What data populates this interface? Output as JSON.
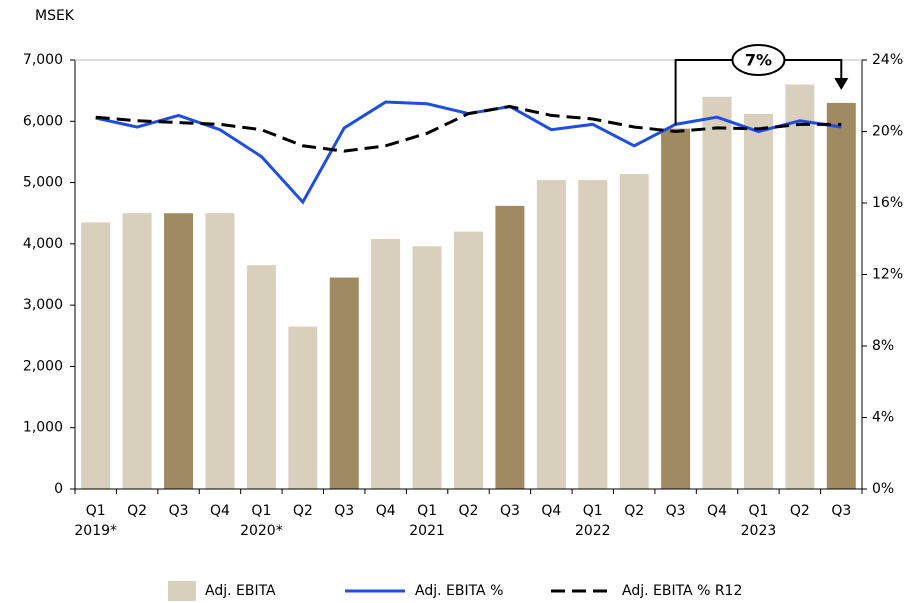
{
  "chart_data": {
    "type": "bar",
    "y_unit_label": "MSEK",
    "categories": [
      "Q1",
      "Q2",
      "Q3",
      "Q4",
      "Q1",
      "Q2",
      "Q3",
      "Q4",
      "Q1",
      "Q2",
      "Q3",
      "Q4",
      "Q1",
      "Q2",
      "Q3",
      "Q4",
      "Q1",
      "Q2",
      "Q3"
    ],
    "years": [
      "2019*",
      null,
      null,
      null,
      "2020*",
      null,
      null,
      null,
      "2021",
      null,
      null,
      null,
      "2022",
      null,
      null,
      null,
      "2023",
      null,
      null
    ],
    "series": [
      {
        "name": "Adj. EBITA",
        "color": "#d9cfbd",
        "highlight_color": "#a08a62",
        "highlight": [
          false,
          false,
          true,
          false,
          false,
          false,
          true,
          false,
          false,
          false,
          true,
          false,
          false,
          false,
          true,
          false,
          false,
          false,
          true
        ],
        "values": [
          4350,
          4500,
          4500,
          4500,
          3650,
          2650,
          3450,
          4080,
          3960,
          4200,
          4620,
          5040,
          5040,
          5140,
          5880,
          6400,
          6120,
          6600,
          6300
        ]
      },
      {
        "name": "Adj. EBITA %",
        "type": "line",
        "axis": "y2",
        "color": "#1f4de0",
        "dashed": false,
        "values": [
          20.75,
          20.25,
          20.9,
          20.1,
          18.6,
          16.05,
          20.2,
          21.65,
          21.55,
          21.0,
          21.4,
          20.1,
          20.4,
          19.2,
          20.4,
          20.8,
          20.0,
          20.6,
          20.25
        ]
      },
      {
        "name": "Adj. EBITA % R12",
        "type": "line",
        "axis": "y2",
        "color": "#000000",
        "dashed": true,
        "values": [
          20.8,
          20.6,
          20.5,
          20.4,
          20.1,
          19.2,
          18.9,
          19.2,
          19.9,
          21.0,
          21.4,
          20.9,
          20.7,
          20.25,
          20.0,
          20.2,
          20.15,
          20.4,
          20.4
        ]
      }
    ],
    "ylim": [
      0,
      7000
    ],
    "yticks": [
      0,
      {
        "value": 1000,
        "label": "1,000"
      },
      {
        "value": 2000,
        "label": "2,000"
      },
      {
        "value": 3000,
        "label": "3,000"
      },
      {
        "value": 4000,
        "label": "4,000"
      },
      {
        "value": 5000,
        "label": "5,000"
      },
      {
        "value": 6000,
        "label": "6,000"
      },
      {
        "value": 7000,
        "label": "7,000"
      }
    ],
    "y2lim": [
      0,
      24
    ],
    "y2ticks": [
      {
        "value": 0,
        "label": "0%"
      },
      {
        "value": 4,
        "label": "4%"
      },
      {
        "value": 8,
        "label": "8%"
      },
      {
        "value": 12,
        "label": "12%"
      },
      {
        "value": 16,
        "label": "16%"
      },
      {
        "value": 20,
        "label": "20%"
      },
      {
        "value": 24,
        "label": "24%"
      }
    ],
    "annotation": "7%"
  }
}
